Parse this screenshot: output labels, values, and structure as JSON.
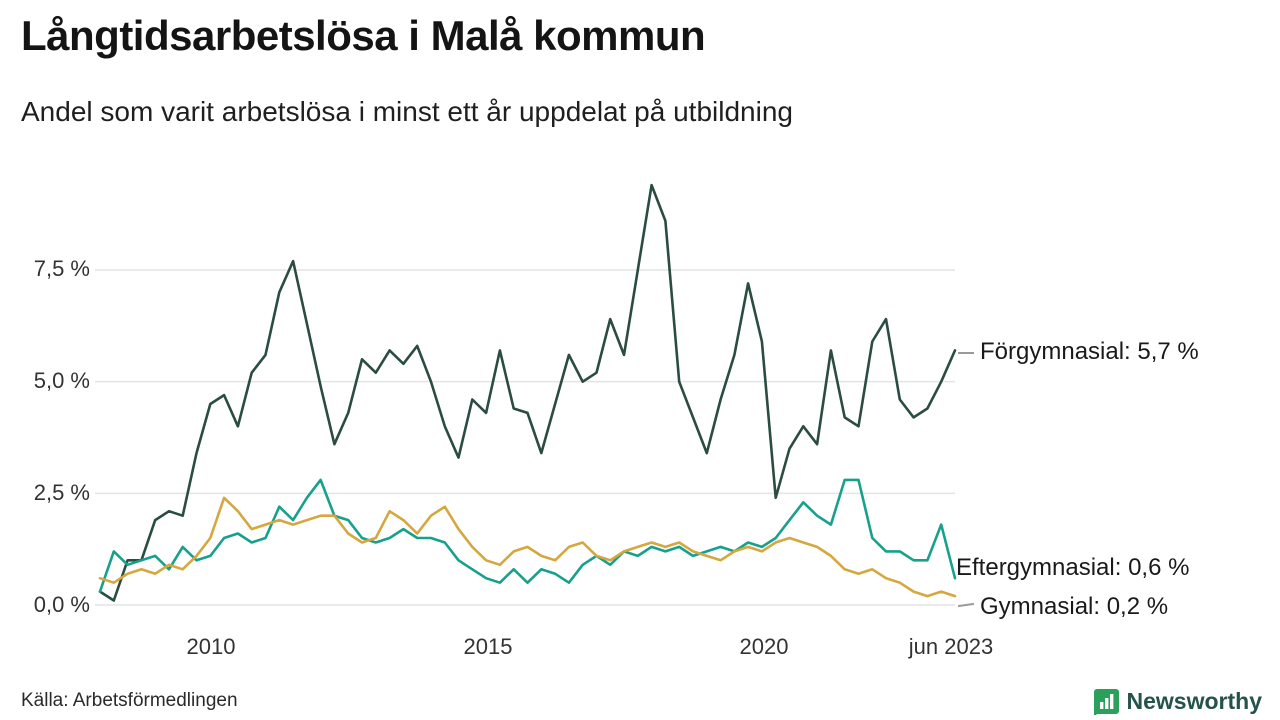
{
  "header": {
    "title": "Långtidsarbetslösa i Malå kommun",
    "subtitle": "Andel som varit arbetslösa i minst ett år uppdelat på utbildning"
  },
  "footer": {
    "source": "Källa: Arbetsförmedlingen",
    "brand_name": "Newsworthy",
    "brand_color": "#2aa05a"
  },
  "chart_data": {
    "type": "line",
    "title": "Långtidsarbetslösa i Malå kommun",
    "subtitle": "Andel som varit arbetslösa i minst ett år uppdelat på utbildning",
    "grid": true,
    "legend_position": "right-end-labels",
    "x_range": [
      2008,
      2023.5
    ],
    "y_range": [
      0,
      9.96
    ],
    "x_ticks": [
      {
        "label": "2010",
        "t": 2010
      },
      {
        "label": "2015",
        "t": 2015
      },
      {
        "label": "2020",
        "t": 2020
      },
      {
        "label": "jun 2023",
        "t": 2023.42
      }
    ],
    "y_ticks": [
      {
        "label": "0,0 %",
        "v": 0
      },
      {
        "label": "2,5 %",
        "v": 2.5
      },
      {
        "label": "5,0 %",
        "v": 5
      },
      {
        "label": "7,5 %",
        "v": 7.5
      }
    ],
    "x_start": 2008,
    "x_step": 0.25,
    "unit": "%",
    "series": [
      {
        "name": "Förgymnasial",
        "end_label": "Förgymnasial: 5,7 %",
        "end_value": "5,7 %",
        "color": "#2b4c41",
        "values": [
          0.3,
          0.1,
          1.0,
          1.0,
          1.9,
          2.1,
          2.0,
          3.4,
          4.5,
          4.7,
          4.0,
          5.2,
          5.6,
          7.0,
          7.7,
          6.3,
          4.9,
          3.6,
          4.3,
          5.5,
          5.2,
          5.7,
          5.4,
          5.8,
          5.0,
          4.0,
          3.3,
          4.6,
          4.3,
          5.7,
          4.4,
          4.3,
          3.4,
          4.5,
          5.6,
          5.0,
          5.2,
          6.4,
          5.6,
          7.5,
          9.4,
          8.6,
          5.0,
          4.2,
          3.4,
          4.6,
          5.6,
          7.2,
          5.9,
          2.4,
          3.5,
          4.0,
          3.6,
          5.7,
          4.2,
          4.0,
          5.9,
          6.4,
          4.6,
          4.2,
          4.4,
          5.0,
          5.7
        ]
      },
      {
        "name": "Eftergymnasial",
        "end_label": "Eftergymnasial: 0,6 %",
        "end_value": "0,6 %",
        "color": "#17a18c",
        "values": [
          0.3,
          1.2,
          0.9,
          1.0,
          1.1,
          0.8,
          1.3,
          1.0,
          1.1,
          1.5,
          1.6,
          1.4,
          1.5,
          2.2,
          1.9,
          2.4,
          2.8,
          2.0,
          1.9,
          1.5,
          1.4,
          1.5,
          1.7,
          1.5,
          1.5,
          1.4,
          1.0,
          0.8,
          0.6,
          0.5,
          0.8,
          0.5,
          0.8,
          0.7,
          0.5,
          0.9,
          1.1,
          0.9,
          1.2,
          1.1,
          1.3,
          1.2,
          1.3,
          1.1,
          1.2,
          1.3,
          1.2,
          1.4,
          1.3,
          1.5,
          1.9,
          2.3,
          2.0,
          1.8,
          2.8,
          2.8,
          1.5,
          1.2,
          1.2,
          1.0,
          1.0,
          1.8,
          0.6
        ]
      },
      {
        "name": "Gymnasial",
        "end_label": "Gymnasial: 0,2 %",
        "end_value": "0,2 %",
        "color": "#d6a73f",
        "values": [
          0.6,
          0.5,
          0.7,
          0.8,
          0.7,
          0.9,
          0.8,
          1.1,
          1.5,
          2.4,
          2.1,
          1.7,
          1.8,
          1.9,
          1.8,
          1.9,
          2.0,
          2.0,
          1.6,
          1.4,
          1.5,
          2.1,
          1.9,
          1.6,
          2.0,
          2.2,
          1.7,
          1.3,
          1.0,
          0.9,
          1.2,
          1.3,
          1.1,
          1.0,
          1.3,
          1.4,
          1.1,
          1.0,
          1.2,
          1.3,
          1.4,
          1.3,
          1.4,
          1.2,
          1.1,
          1.0,
          1.2,
          1.3,
          1.2,
          1.4,
          1.5,
          1.4,
          1.3,
          1.1,
          0.8,
          0.7,
          0.8,
          0.6,
          0.5,
          0.3,
          0.2,
          0.3,
          0.2
        ]
      }
    ],
    "grid_color": "#e4e4e4"
  }
}
